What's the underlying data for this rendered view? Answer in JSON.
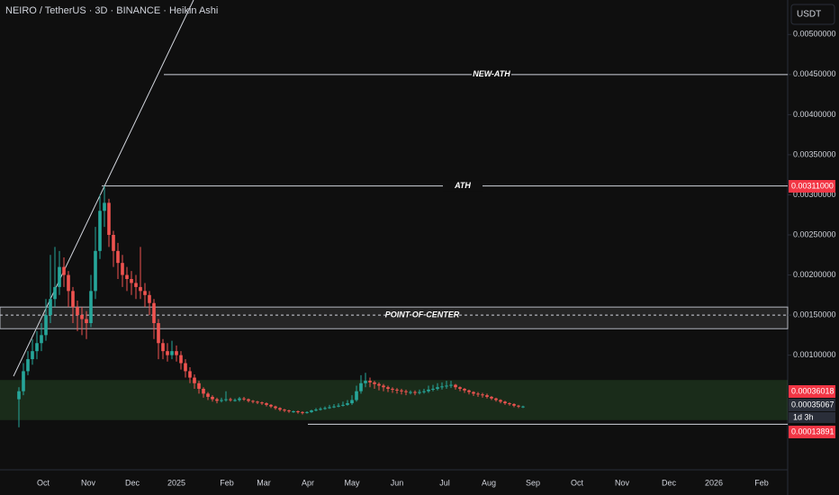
{
  "chart_data": {
    "type": "candlestick",
    "title": "NEIRO / TetherUS · 3D · BINANCE · Heikin Ashi",
    "currency": "USDT",
    "up_color": "#26a69a",
    "down_color": "#ef5350",
    "ylim": [
      -0.00043,
      0.00543
    ],
    "yticks": [
      {
        "value": 0.005,
        "label": "0.00500000"
      },
      {
        "value": 0.0045,
        "label": "0.00450000"
      },
      {
        "value": 0.004,
        "label": "0.00400000"
      },
      {
        "value": 0.0035,
        "label": "0.00350000"
      },
      {
        "value": 0.003,
        "label": "0.00300000"
      },
      {
        "value": 0.0025,
        "label": "0.00250000"
      },
      {
        "value": 0.002,
        "label": "0.00200000"
      },
      {
        "value": 0.0015,
        "label": "0.00150000"
      },
      {
        "value": 0.001,
        "label": "0.00100000"
      }
    ],
    "x_labels": [
      "Oct",
      "Nov",
      "Dec",
      "2025",
      "Feb",
      "Mar",
      "Apr",
      "May",
      "Jun",
      "Jul",
      "Aug",
      "Sep",
      "Oct",
      "Nov",
      "Dec",
      "2026",
      "Feb"
    ],
    "candles": [
      [
        0.00045,
        0.0006,
        0.0001,
        0.00055
      ],
      [
        0.00055,
        0.0009,
        0.0005,
        0.0008
      ],
      [
        0.0008,
        0.00105,
        0.00075,
        0.00095
      ],
      [
        0.00095,
        0.0012,
        0.00088,
        0.00105
      ],
      [
        0.00105,
        0.0013,
        0.00095,
        0.00115
      ],
      [
        0.00115,
        0.0014,
        0.00105,
        0.00125
      ],
      [
        0.00125,
        0.0017,
        0.00118,
        0.0015
      ],
      [
        0.0015,
        0.00225,
        0.0014,
        0.0017
      ],
      [
        0.0017,
        0.00235,
        0.0016,
        0.00185
      ],
      [
        0.00185,
        0.0023,
        0.00175,
        0.0021
      ],
      [
        0.0021,
        0.00222,
        0.00185,
        0.002
      ],
      [
        0.002,
        0.00205,
        0.0016,
        0.0018
      ],
      [
        0.0018,
        0.00185,
        0.0014,
        0.0016
      ],
      [
        0.0016,
        0.00168,
        0.0013,
        0.0015
      ],
      [
        0.0015,
        0.0016,
        0.00125,
        0.00145
      ],
      [
        0.00145,
        0.00155,
        0.0012,
        0.0014
      ],
      [
        0.0014,
        0.002,
        0.00135,
        0.0018
      ],
      [
        0.0018,
        0.0026,
        0.0017,
        0.0023
      ],
      [
        0.0023,
        0.003,
        0.0022,
        0.0028
      ],
      [
        0.0028,
        0.00311,
        0.0026,
        0.0029
      ],
      [
        0.0029,
        0.00295,
        0.00235,
        0.0025
      ],
      [
        0.0025,
        0.00255,
        0.0021,
        0.0023
      ],
      [
        0.0023,
        0.0024,
        0.00195,
        0.00215
      ],
      [
        0.00215,
        0.00225,
        0.00185,
        0.002
      ],
      [
        0.002,
        0.0021,
        0.0018,
        0.00195
      ],
      [
        0.00195,
        0.00205,
        0.00175,
        0.0019
      ],
      [
        0.0019,
        0.002,
        0.0017,
        0.00185
      ],
      [
        0.00185,
        0.00235,
        0.0017,
        0.0018
      ],
      [
        0.0018,
        0.0019,
        0.0016,
        0.00175
      ],
      [
        0.00175,
        0.0018,
        0.0015,
        0.00165
      ],
      [
        0.00165,
        0.0017,
        0.0012,
        0.0014
      ],
      [
        0.0014,
        0.00145,
        0.00095,
        0.00115
      ],
      [
        0.00115,
        0.0012,
        0.00095,
        0.00105
      ],
      [
        0.00105,
        0.00115,
        0.00092,
        0.001
      ],
      [
        0.001,
        0.00118,
        0.00095,
        0.00105
      ],
      [
        0.00105,
        0.00112,
        0.00092,
        0.001
      ],
      [
        0.001,
        0.00105,
        0.00082,
        0.0009
      ],
      [
        0.0009,
        0.00095,
        0.00072,
        0.0008
      ],
      [
        0.0008,
        0.00085,
        0.00065,
        0.00072
      ],
      [
        0.00072,
        0.00076,
        0.00058,
        0.00065
      ],
      [
        0.00065,
        0.00068,
        0.00052,
        0.00058
      ],
      [
        0.00058,
        0.0006,
        0.00047,
        0.00052
      ],
      [
        0.00052,
        0.00054,
        0.00044,
        0.00048
      ],
      [
        0.00048,
        0.0005,
        0.00042,
        0.00045
      ],
      [
        0.00045,
        0.00047,
        0.0004,
        0.00043
      ],
      [
        0.00043,
        0.00047,
        0.00041,
        0.00044
      ],
      [
        0.00044,
        0.00055,
        0.00042,
        0.00045
      ],
      [
        0.00045,
        0.00047,
        0.00042,
        0.00044
      ],
      [
        0.00044,
        0.00046,
        0.00042,
        0.00044
      ],
      [
        0.00044,
        0.00048,
        0.00042,
        0.00046
      ],
      [
        0.00046,
        0.00048,
        0.00043,
        0.00045
      ],
      [
        0.00045,
        0.00046,
        0.00041,
        0.00043
      ],
      [
        0.00043,
        0.00044,
        0.0004,
        0.00042
      ],
      [
        0.00042,
        0.00043,
        0.00039,
        0.00041
      ],
      [
        0.00041,
        0.00042,
        0.00038,
        0.0004
      ],
      [
        0.0004,
        0.00041,
        0.00036,
        0.00038
      ],
      [
        0.00038,
        0.00039,
        0.00034,
        0.00036
      ],
      [
        0.00036,
        0.00037,
        0.00032,
        0.00034
      ],
      [
        0.00034,
        0.00035,
        0.0003,
        0.00032
      ],
      [
        0.00032,
        0.00033,
        0.00029,
        0.00031
      ],
      [
        0.00031,
        0.00032,
        0.00028,
        0.0003
      ],
      [
        0.0003,
        0.00031,
        0.00028,
        0.0003
      ],
      [
        0.0003,
        0.00031,
        0.00027,
        0.00029
      ],
      [
        0.00029,
        0.0003,
        0.00026,
        0.00028
      ],
      [
        0.00028,
        0.0003,
        0.00027,
        0.00029
      ],
      [
        0.00029,
        0.00032,
        0.00028,
        0.00031
      ],
      [
        0.00031,
        0.00034,
        0.0003,
        0.00032
      ],
      [
        0.00032,
        0.00035,
        0.00031,
        0.00033
      ],
      [
        0.00033,
        0.00036,
        0.00032,
        0.00034
      ],
      [
        0.00034,
        0.00038,
        0.00033,
        0.00035
      ],
      [
        0.00035,
        0.00039,
        0.00034,
        0.00036
      ],
      [
        0.00036,
        0.0004,
        0.00035,
        0.00037
      ],
      [
        0.00037,
        0.00042,
        0.00036,
        0.00038
      ],
      [
        0.00038,
        0.00044,
        0.00037,
        0.0004
      ],
      [
        0.0004,
        0.0005,
        0.00038,
        0.00044
      ],
      [
        0.00044,
        0.00062,
        0.00042,
        0.00055
      ],
      [
        0.00055,
        0.00075,
        0.00052,
        0.00065
      ],
      [
        0.00065,
        0.00078,
        0.0006,
        0.00068
      ],
      [
        0.00068,
        0.00072,
        0.0006,
        0.00066
      ],
      [
        0.00066,
        0.00068,
        0.00058,
        0.00064
      ],
      [
        0.00064,
        0.00066,
        0.00056,
        0.00062
      ],
      [
        0.00062,
        0.00064,
        0.00055,
        0.0006
      ],
      [
        0.0006,
        0.00062,
        0.00054,
        0.00058
      ],
      [
        0.00058,
        0.0006,
        0.00053,
        0.00057
      ],
      [
        0.00057,
        0.00059,
        0.00052,
        0.00056
      ],
      [
        0.00056,
        0.00058,
        0.00051,
        0.00055
      ],
      [
        0.00055,
        0.00057,
        0.0005,
        0.00054
      ],
      [
        0.00054,
        0.00056,
        0.00051,
        0.00054
      ],
      [
        0.00054,
        0.00056,
        0.0005,
        0.00053
      ],
      [
        0.00053,
        0.00057,
        0.00051,
        0.00054
      ],
      [
        0.00054,
        0.00058,
        0.00052,
        0.00055
      ],
      [
        0.00055,
        0.00062,
        0.00053,
        0.00057
      ],
      [
        0.00057,
        0.00063,
        0.00055,
        0.00058
      ],
      [
        0.00058,
        0.00065,
        0.00056,
        0.0006
      ],
      [
        0.0006,
        0.00066,
        0.00057,
        0.00061
      ],
      [
        0.00061,
        0.00068,
        0.00058,
        0.00062
      ],
      [
        0.00062,
        0.00068,
        0.00059,
        0.00063
      ],
      [
        0.00063,
        0.00064,
        0.00057,
        0.0006
      ],
      [
        0.0006,
        0.00061,
        0.00055,
        0.00058
      ],
      [
        0.00058,
        0.00059,
        0.00053,
        0.00056
      ],
      [
        0.00056,
        0.00057,
        0.00051,
        0.00054
      ],
      [
        0.00054,
        0.00055,
        0.00049,
        0.00052
      ],
      [
        0.00052,
        0.00054,
        0.00048,
        0.00051
      ],
      [
        0.00051,
        0.00053,
        0.00047,
        0.0005
      ],
      [
        0.0005,
        0.00052,
        0.00046,
        0.00048
      ],
      [
        0.00048,
        0.00049,
        0.00044,
        0.00046
      ],
      [
        0.00046,
        0.00047,
        0.00042,
        0.00044
      ],
      [
        0.00044,
        0.00045,
        0.0004,
        0.00042
      ],
      [
        0.00042,
        0.00043,
        0.00038,
        0.0004
      ],
      [
        0.0004,
        0.00041,
        0.00037,
        0.00039
      ],
      [
        0.00039,
        0.0004,
        0.00035,
        0.00037
      ],
      [
        0.00037,
        0.00038,
        0.00034,
        0.00036
      ],
      [
        0.00036,
        0.00037,
        0.00034,
        0.00036
      ]
    ],
    "levels": [
      {
        "label": "NEW-ATH",
        "value": 0.0045
      },
      {
        "label": "ATH",
        "value": 0.00311
      }
    ],
    "zone": {
      "label": "POINT-OF-CENTER",
      "low": 0.00133,
      "high": 0.0016,
      "mid": 0.0015
    },
    "demand_zone": {
      "low": 0.00019,
      "high": 0.00069
    },
    "support": 0.00013891,
    "price_tags": [
      {
        "label": "0.00311000",
        "value": 0.00311,
        "color": "#f23645"
      },
      {
        "label": "0.00036018",
        "value": 0.00036018,
        "color": "#f23645"
      },
      {
        "label": "0.00035067",
        "value": 0.00035067,
        "color": "#2a2e39"
      },
      {
        "label": "0.00013891",
        "value": 0.00013891,
        "color": "#f23645"
      }
    ],
    "countdown": "1d 3h"
  }
}
